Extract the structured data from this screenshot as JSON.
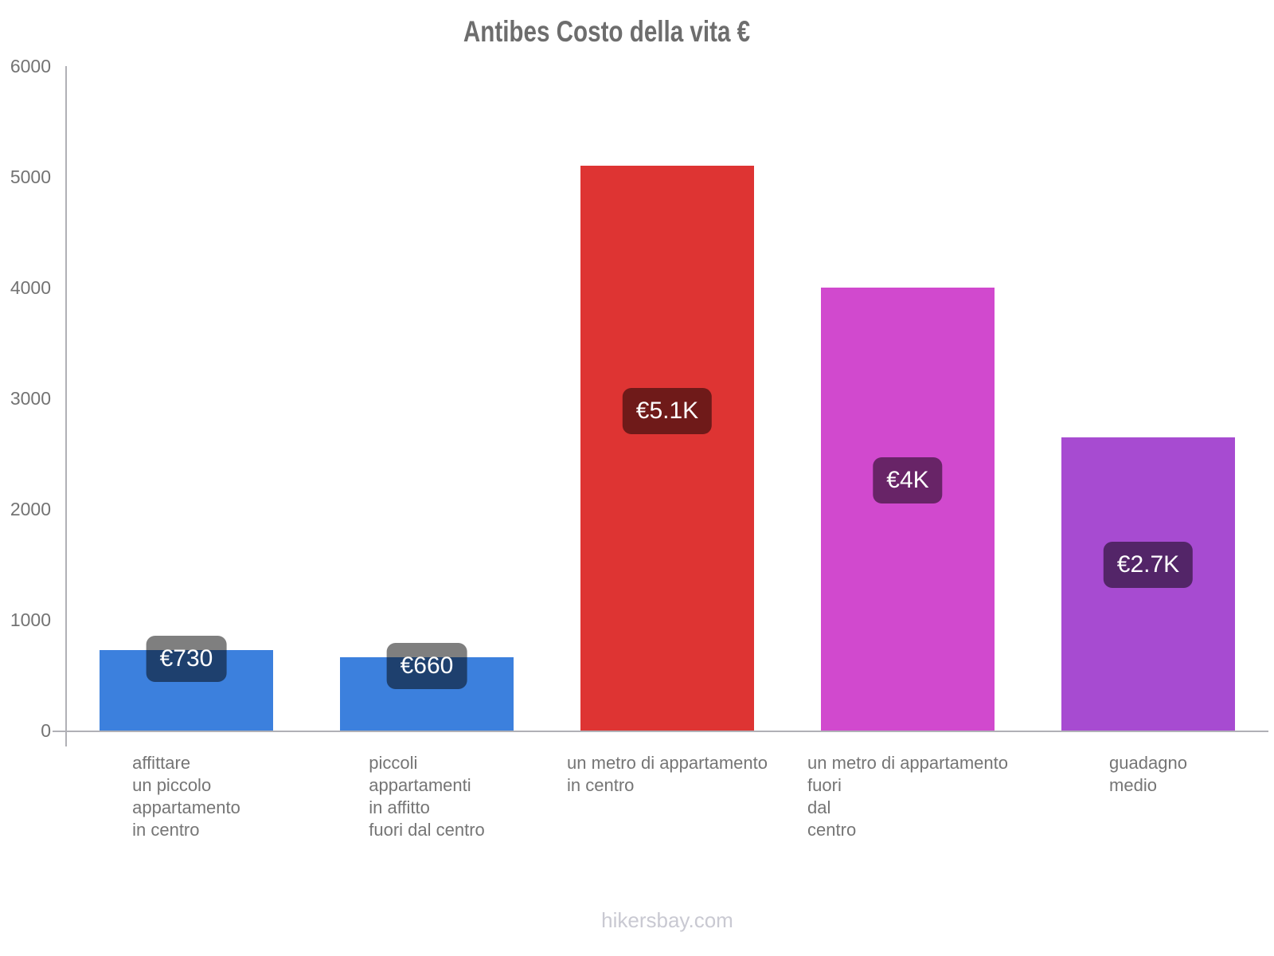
{
  "title": "Antibes Costo della vita €",
  "watermark": "hikersbay.com",
  "chart_data": {
    "type": "bar",
    "title": "Antibes Costo della vita €",
    "categories": [
      [
        "affittare",
        "un piccolo",
        "appartamento",
        "in centro"
      ],
      [
        "piccoli",
        "appartamenti",
        "in affitto",
        "fuori dal centro"
      ],
      [
        "un metro di appartamento",
        "in centro"
      ],
      [
        "un metro di appartamento",
        "fuori",
        "dal",
        "centro"
      ],
      [
        "guadagno",
        "medio"
      ]
    ],
    "values": [
      730,
      660,
      5100,
      4000,
      2650
    ],
    "value_labels": [
      "€730",
      "€660",
      "€5.1K",
      "€4K",
      "€2.7K"
    ],
    "bar_colors": [
      "#3C80DD",
      "#3C80DD",
      "#DE3433",
      "#D149CE",
      "#A74BD1"
    ],
    "xlabel": "",
    "ylabel": "",
    "ylim": [
      0,
      6000
    ],
    "yticks": [
      0,
      1000,
      2000,
      3000,
      4000,
      5000,
      6000
    ],
    "grid": false,
    "legend": false,
    "value_badge_style": {
      "background": "rgba(0,0,0,0.5)",
      "text_color": "#ffffff"
    },
    "axis_color": "#b0b0b6",
    "tick_label_color": "#737373",
    "category_label_color": "#757575",
    "title_color": "#6d6d6d",
    "watermark_color": "#c9c9d2"
  }
}
